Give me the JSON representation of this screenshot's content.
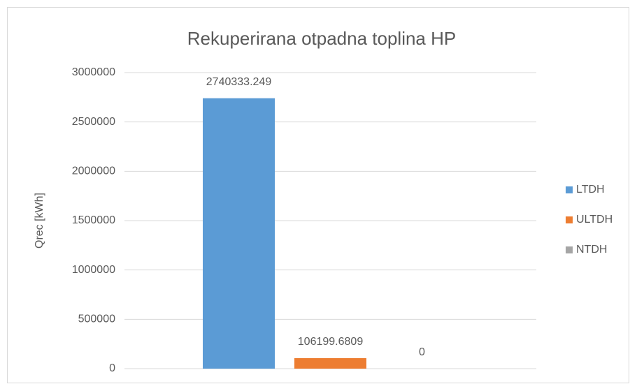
{
  "chart_data": {
    "type": "bar",
    "title": "Rekuperirana otpadna toplina HP",
    "y_label": "Qrec [kWh]",
    "categories": [
      null
    ],
    "series": [
      {
        "name": "LTDH",
        "color": "#5b9bd5",
        "values": [
          2740333.249
        ]
      },
      {
        "name": "ULTDH",
        "color": "#ed7d31",
        "values": [
          106199.6809
        ]
      },
      {
        "name": "NTDH",
        "color": "#a5a5a5",
        "values": [
          0
        ]
      }
    ],
    "ylim": [
      0,
      3000000
    ],
    "yticks": [
      0,
      500000,
      1000000,
      1500000,
      2000000,
      2500000,
      3000000
    ],
    "grid": true,
    "legend": "right",
    "data_labels": true
  }
}
